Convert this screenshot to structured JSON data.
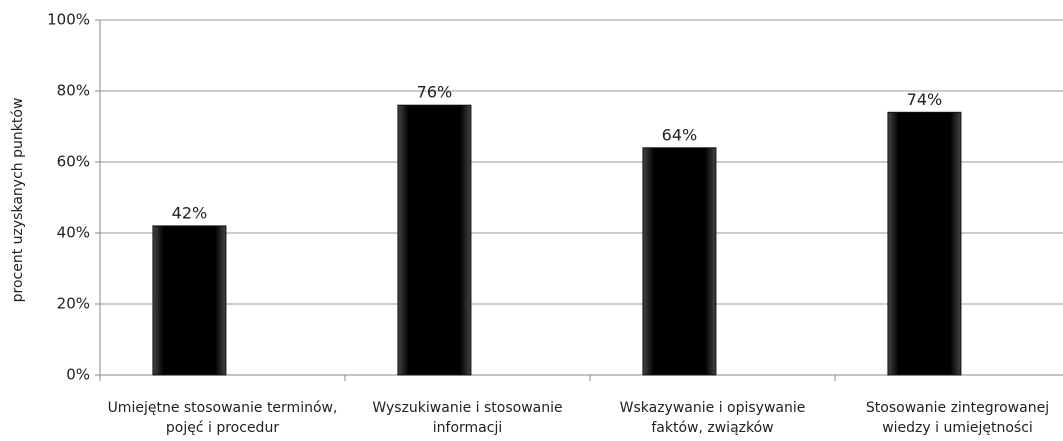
{
  "chart_data": {
    "type": "bar",
    "y_label": "procent uzyskanych punktów",
    "categories": [
      "Umiejętne stosowanie terminów, pojęć i procedur",
      "Wyszukiwanie i stosowanie informacji",
      "Wskazywanie i opisywanie faktów, związków",
      "Stosowanie zintegrowanej wiedzy i umiejętności"
    ],
    "values": [
      42,
      76,
      64,
      74
    ],
    "value_labels": [
      "42%",
      "76%",
      "64%",
      "74%"
    ],
    "color": "#111111",
    "ylim": [
      0,
      100
    ],
    "yticks": [
      {
        "value": 0,
        "label": "0%"
      },
      {
        "value": 20,
        "label": "20%"
      },
      {
        "value": 40,
        "label": "40%"
      },
      {
        "value": 60,
        "label": "60%"
      },
      {
        "value": 80,
        "label": "80%"
      },
      {
        "value": 100,
        "label": "100%"
      }
    ],
    "grid": true
  }
}
